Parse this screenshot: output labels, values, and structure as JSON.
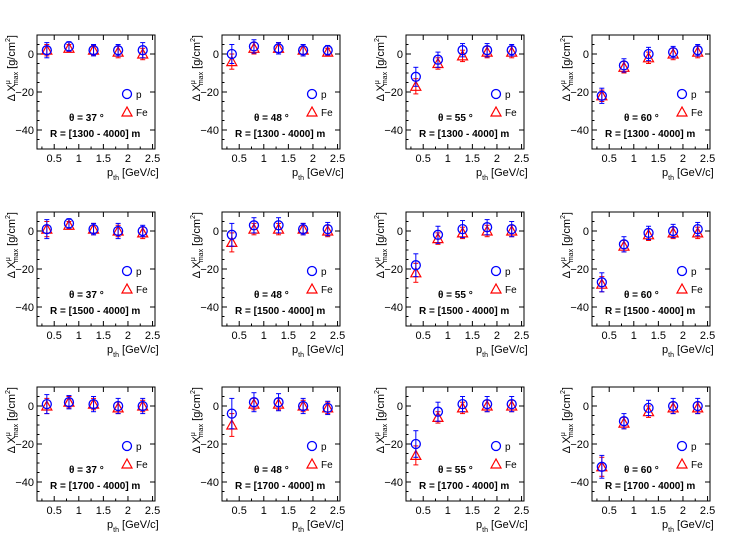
{
  "chart_data": {
    "type": "scatter",
    "layout": "3 rows x 4 columns",
    "xlabel": {
      "main": "p",
      "sub": "th",
      "unit": "[GeV/c]"
    },
    "ylabel": {
      "prefix": "Δ X",
      "sup": "μ",
      "sub": "max",
      "unit": "[g/cm",
      "unit_sup": "2",
      "unit_end": "]"
    },
    "xlim": [
      0.15,
      2.55
    ],
    "ylim": [
      -50,
      10
    ],
    "xticks": [
      0.5,
      1,
      1.5,
      2,
      2.5
    ],
    "xtick_labels": [
      "0.5",
      "1",
      "1.5",
      "2",
      "2.5"
    ],
    "yticks": [
      0,
      -20,
      -40
    ],
    "ytick_labels": [
      "0",
      "−20",
      "−40"
    ],
    "x": [
      0.35,
      0.8,
      1.3,
      1.8,
      2.3
    ],
    "legend": [
      {
        "name": "p",
        "color": "#0000ff",
        "marker": "circle"
      },
      {
        "name": "Fe",
        "color": "#ff0000",
        "marker": "triangle"
      }
    ],
    "angles": [
      "θ = 37 °",
      "θ = 48 °",
      "θ = 55 °",
      "θ = 60 °"
    ],
    "ranges": [
      "R = [1300 - 4000] m",
      "R = [1500 - 4000] m",
      "R = [1700 - 4000] m"
    ],
    "panels": [
      {
        "p": [
          2,
          4,
          2,
          2,
          2
        ],
        "p_err": [
          4,
          2.5,
          3,
          3,
          4
        ],
        "fe": [
          2,
          3,
          2,
          1,
          0
        ],
        "fe_err": [
          3,
          2,
          2.5,
          3,
          3
        ]
      },
      {
        "p": [
          0,
          4,
          3,
          2,
          2
        ],
        "p_err": [
          5,
          3.5,
          3,
          3,
          2.5
        ],
        "fe": [
          -4,
          3,
          3,
          2,
          1
        ],
        "fe_err": [
          4,
          3,
          3,
          3,
          2
        ]
      },
      {
        "p": [
          -12,
          -3,
          2,
          2,
          2
        ],
        "p_err": [
          5,
          4,
          3.5,
          3.5,
          3
        ],
        "fe": [
          -17,
          -5,
          -1,
          1,
          1
        ],
        "fe_err": [
          4,
          3,
          3,
          3,
          3
        ]
      },
      {
        "p": [
          -22,
          -6,
          0,
          1,
          2
        ],
        "p_err": [
          4,
          3.5,
          3.5,
          3,
          3
        ],
        "fe": [
          -22,
          -7,
          -2,
          0,
          1
        ],
        "fe_err": [
          3,
          3,
          3,
          3,
          3
        ]
      },
      {
        "p": [
          1,
          4,
          1,
          0,
          0
        ],
        "p_err": [
          5,
          2.5,
          3,
          4,
          3
        ],
        "fe": [
          1,
          3,
          1,
          0,
          -1
        ],
        "fe_err": [
          4,
          2,
          3,
          3,
          3
        ]
      },
      {
        "p": [
          -2,
          3,
          3,
          1,
          1
        ],
        "p_err": [
          6,
          4,
          4,
          3,
          3.5
        ],
        "fe": [
          -6,
          1,
          1,
          1,
          0
        ],
        "fe_err": [
          5,
          3,
          3,
          3,
          3
        ]
      },
      {
        "p": [
          -18,
          -2,
          1,
          2,
          1
        ],
        "p_err": [
          6,
          4.5,
          4.5,
          4,
          4
        ],
        "fe": [
          -22,
          -4,
          -1,
          0,
          0
        ],
        "fe_err": [
          5,
          3,
          3,
          3,
          3
        ]
      },
      {
        "p": [
          -27,
          -7,
          -1,
          0,
          1
        ],
        "p_err": [
          5,
          4,
          3.5,
          3.5,
          3.5
        ],
        "fe": [
          -28,
          -8,
          -2,
          -1,
          -1
        ],
        "fe_err": [
          4,
          3,
          3,
          3,
          3
        ]
      },
      {
        "p": [
          1,
          2,
          1,
          0,
          0
        ],
        "p_err": [
          5,
          3.5,
          4,
          4,
          4
        ],
        "fe": [
          0,
          2,
          1,
          -1,
          0
        ],
        "fe_err": [
          4,
          3,
          3,
          3,
          3
        ]
      },
      {
        "p": [
          -4,
          2,
          2,
          0,
          -1
        ],
        "p_err": [
          8,
          5,
          4.5,
          4,
          3.5
        ],
        "fe": [
          -10,
          1,
          1,
          0,
          -1
        ],
        "fe_err": [
          6,
          3,
          3,
          3,
          3
        ]
      },
      {
        "p": [
          -20,
          -3,
          1,
          1,
          1
        ],
        "p_err": [
          7,
          5,
          4,
          4,
          4
        ],
        "fe": [
          -26,
          -6,
          -1,
          0,
          0
        ],
        "fe_err": [
          5,
          3,
          3,
          3,
          3
        ]
      },
      {
        "p": [
          -32,
          -8,
          -1,
          0,
          0
        ],
        "p_err": [
          6,
          4,
          4,
          4,
          4
        ],
        "fe": [
          -32,
          -9,
          -3,
          -1,
          -1
        ],
        "fe_err": [
          5,
          3,
          3,
          3,
          3
        ]
      }
    ]
  }
}
